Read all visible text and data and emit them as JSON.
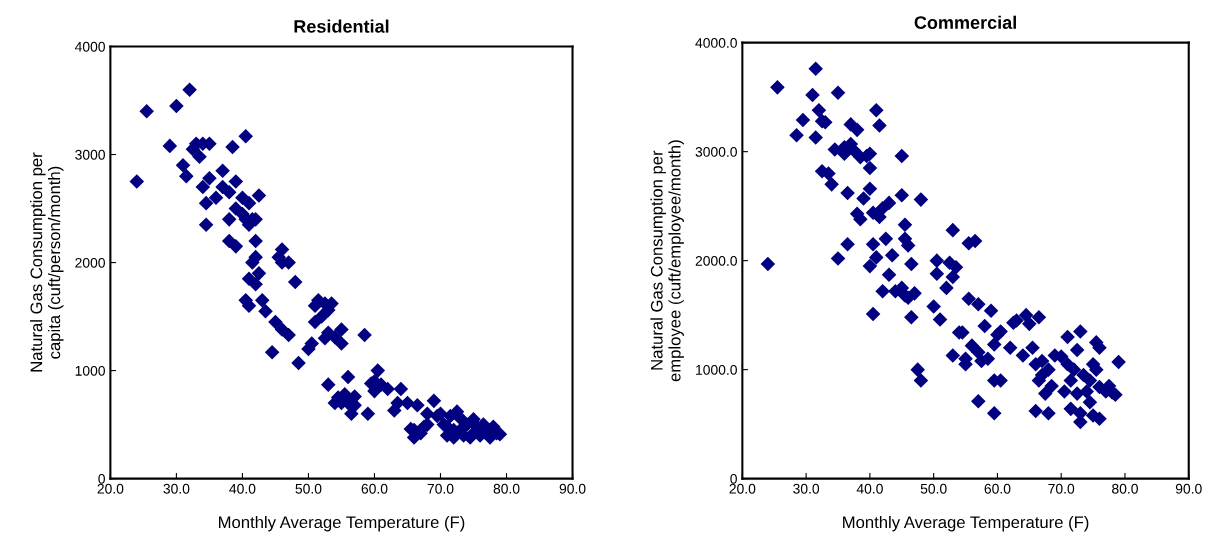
{
  "chart_data": [
    {
      "type": "scatter",
      "title": "Residential",
      "xlabel": "Monthly Average Temperature (F)",
      "ylabel": "Natural Gas Consumption per\ncapita (cuft/person/month)",
      "marker": "diamond",
      "grid": false,
      "legend": false,
      "xlim": [
        20,
        90
      ],
      "xticks": [
        {
          "value": 20,
          "label": "20.0"
        },
        {
          "value": 30,
          "label": "30.0"
        },
        {
          "value": 40,
          "label": "40.0"
        },
        {
          "value": 50,
          "label": "50.0"
        },
        {
          "value": 60,
          "label": "60.0"
        },
        {
          "value": 70,
          "label": "70.0"
        },
        {
          "value": 80,
          "label": "80.0"
        },
        {
          "value": 90,
          "label": "90.0"
        }
      ],
      "ylim": [
        0,
        4000
      ],
      "yticks": [
        0,
        1000,
        2000,
        3000,
        4000
      ],
      "series": [
        {
          "color": "#000080",
          "x": [
            24,
            25.5,
            29,
            30,
            31,
            32,
            31.5,
            32.5,
            33,
            33.5,
            34,
            35,
            34,
            34.5,
            35,
            34.5,
            36,
            37,
            37,
            38,
            38.5,
            38,
            38,
            39,
            39,
            39,
            40,
            40,
            40.5,
            40.5,
            41,
            41,
            41.5,
            42,
            42.5,
            41,
            41.5,
            42,
            42,
            40.5,
            41,
            42,
            42.5,
            43,
            43.5,
            44.5,
            45,
            45.5,
            46,
            46,
            46,
            47,
            47,
            48,
            48.5,
            50,
            50.5,
            51,
            51,
            51.5,
            52,
            52.5,
            52.5,
            53,
            53.5,
            53,
            54,
            55,
            55,
            53,
            54,
            54.5,
            55,
            55.5,
            56,
            56,
            56.5,
            57,
            57,
            58.5,
            59,
            59.5,
            60,
            60,
            60.5,
            61,
            62,
            63,
            63.5,
            64,
            65,
            65.5,
            66,
            66,
            66.5,
            67,
            67.5,
            68,
            68,
            69,
            69.5,
            70,
            70.5,
            71,
            71,
            71.5,
            72,
            72,
            72.5,
            73,
            73,
            73.5,
            74,
            74.5,
            75,
            75,
            75.5,
            76,
            76.5,
            77,
            77.5,
            78,
            78.5,
            79
          ],
          "values": [
            2750,
            3400,
            3080,
            3450,
            2900,
            3600,
            2800,
            3050,
            3100,
            2980,
            3100,
            3100,
            2700,
            2550,
            2780,
            2350,
            2600,
            2850,
            2700,
            2650,
            3070,
            2400,
            2200,
            2150,
            2750,
            2500,
            2450,
            2600,
            2400,
            3170,
            2350,
            2550,
            2400,
            2400,
            2620,
            1850,
            2000,
            2200,
            2050,
            1650,
            1600,
            1800,
            1900,
            1650,
            1550,
            1170,
            1450,
            2050,
            2120,
            2000,
            1380,
            2000,
            1330,
            1820,
            1070,
            1200,
            1250,
            1450,
            1600,
            1650,
            1500,
            1620,
            1300,
            1560,
            1620,
            1350,
            1310,
            1380,
            1250,
            870,
            700,
            750,
            700,
            780,
            940,
            700,
            600,
            760,
            680,
            1330,
            600,
            880,
            900,
            810,
            1000,
            870,
            830,
            630,
            700,
            830,
            700,
            460,
            380,
            450,
            680,
            420,
            480,
            500,
            600,
            720,
            580,
            600,
            500,
            400,
            480,
            580,
            380,
            450,
            620,
            560,
            450,
            400,
            500,
            380,
            550,
            420,
            480,
            400,
            500,
            450,
            380,
            480,
            420,
            410
          ]
        }
      ]
    },
    {
      "type": "scatter",
      "title": "Commercial",
      "xlabel": "Monthly Average Temperature (F)",
      "ylabel": "Natural Gas Consumption per\nemployee (cuft/employee/month)",
      "marker": "diamond",
      "grid": false,
      "legend": false,
      "xlim": [
        20,
        90
      ],
      "xticks": [
        {
          "value": 20,
          "label": "20.0"
        },
        {
          "value": 30,
          "label": "30.0"
        },
        {
          "value": 40,
          "label": "40.0"
        },
        {
          "value": 50,
          "label": "50.0"
        },
        {
          "value": 60,
          "label": "60.0"
        },
        {
          "value": 70,
          "label": "70.0"
        },
        {
          "value": 80,
          "label": "80.0"
        },
        {
          "value": 90,
          "label": "90.0"
        }
      ],
      "ylim": [
        0,
        4000
      ],
      "yticks": [
        0,
        {
          "value": 1000,
          "label": "1000.0"
        },
        {
          "value": 2000,
          "label": "2000.0"
        },
        {
          "value": 3000,
          "label": "3000.0"
        },
        {
          "value": 4000,
          "label": "4000.0"
        }
      ],
      "series": [
        {
          "color": "#000080",
          "x": [
            24,
            25.5,
            28.5,
            29.5,
            31,
            31.5,
            31.5,
            32,
            32.5,
            33,
            32.5,
            33.5,
            34,
            34.5,
            35,
            35,
            36,
            36,
            36.5,
            36.5,
            37,
            37,
            37.5,
            38,
            38,
            38.5,
            38.5,
            39,
            39.5,
            40,
            40,
            40,
            40.5,
            40.5,
            40,
            40.5,
            41,
            41,
            41.5,
            41.5,
            42,
            42,
            42.5,
            43,
            43,
            43.5,
            44,
            45,
            45,
            45.5,
            45.5,
            45,
            45.5,
            46,
            46.5,
            46,
            46.5,
            47,
            47.5,
            48,
            48,
            50,
            50.5,
            50.5,
            51,
            52,
            52.5,
            53,
            53,
            53,
            53.5,
            54,
            54.5,
            55,
            55.5,
            55,
            55.5,
            56,
            56.5,
            57,
            57,
            57,
            57.5,
            58,
            58.5,
            59,
            59.5,
            59.5,
            59.5,
            60,
            60.5,
            60.5,
            62,
            62.5,
            63,
            64,
            64.5,
            65,
            65.5,
            66,
            66,
            66.5,
            66.5,
            67,
            67,
            67.5,
            68,
            68,
            68.5,
            69,
            70,
            70.5,
            71,
            71,
            71.5,
            71.5,
            72,
            72.5,
            72.5,
            73,
            73,
            73,
            73.5,
            74,
            74.5,
            74.5,
            75,
            75,
            75.5,
            75.5,
            76,
            76,
            76,
            77,
            77.5,
            78,
            79,
            78.5
          ],
          "values": [
            1970,
            3590,
            3150,
            3290,
            3520,
            3760,
            3130,
            3380,
            3280,
            3270,
            2820,
            2800,
            2700,
            3020,
            3540,
            2020,
            3040,
            2980,
            2150,
            2620,
            3250,
            3070,
            3010,
            2430,
            3200,
            2950,
            2380,
            2570,
            2960,
            2660,
            2850,
            2980,
            2440,
            2150,
            1950,
            1510,
            3380,
            2030,
            3240,
            2400,
            2480,
            1720,
            2200,
            2530,
            1870,
            2050,
            1720,
            2960,
            2600,
            2330,
            2200,
            1750,
            1680,
            1660,
            1970,
            2140,
            1480,
            1700,
            1000,
            2560,
            900,
            1580,
            1880,
            2000,
            1460,
            1750,
            1980,
            1850,
            2280,
            1130,
            1940,
            1340,
            1340,
            1100,
            2160,
            1050,
            1650,
            1220,
            2180,
            1600,
            1160,
            710,
            1080,
            1400,
            1100,
            1540,
            900,
            1230,
            600,
            1320,
            1350,
            900,
            1200,
            1430,
            1450,
            1130,
            1500,
            1420,
            1200,
            620,
            1050,
            900,
            1480,
            950,
            1080,
            780,
            1000,
            600,
            850,
            1130,
            1120,
            800,
            1050,
            1300,
            640,
            900,
            1000,
            1180,
            780,
            1350,
            600,
            520,
            950,
            800,
            700,
            900,
            580,
            1050,
            1250,
            1000,
            840,
            550,
            1200,
            800,
            850,
            790,
            1070,
            770
          ]
        }
      ]
    }
  ]
}
